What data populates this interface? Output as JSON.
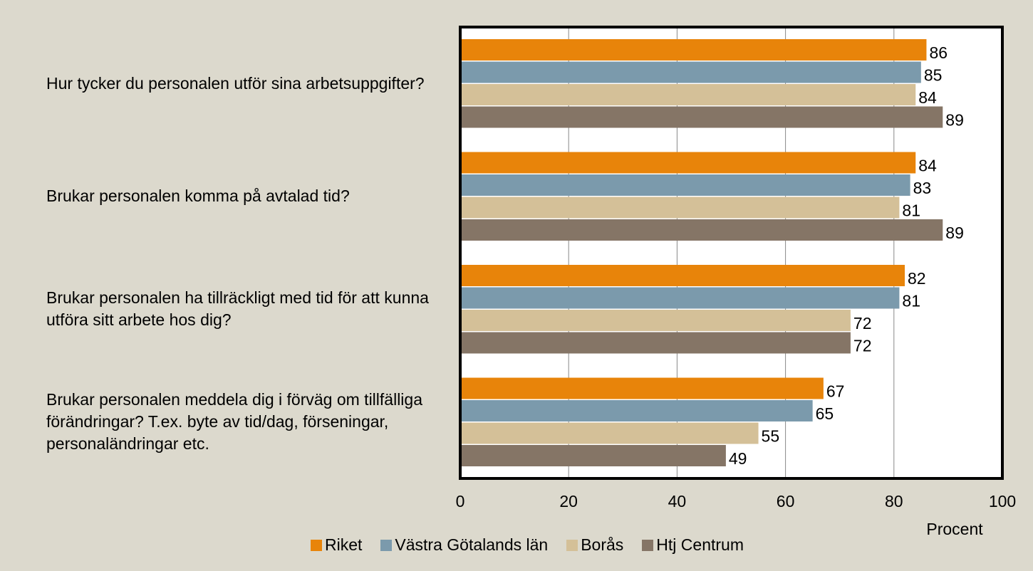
{
  "chart_data": {
    "type": "barh",
    "categories": [
      "Hur tycker du personalen utför sina arbetsuppgifter?",
      "Brukar personalen komma på avtalad tid?",
      "Brukar personalen ha tillräckligt med tid för att kunna utföra sitt arbete hos dig?",
      "Brukar personalen meddela dig i förväg om tillfälliga förändringar? T.ex. byte av tid/dag, förseningar, personaländringar etc."
    ],
    "series": [
      {
        "name": "Riket",
        "color": "#e8840a",
        "values": [
          86,
          84,
          82,
          67
        ]
      },
      {
        "name": "Västra Götalands län",
        "color": "#7b9aac",
        "values": [
          85,
          83,
          81,
          65
        ]
      },
      {
        "name": "Borås",
        "color": "#d4c098",
        "values": [
          84,
          81,
          72,
          55
        ]
      },
      {
        "name": "Htj Centrum",
        "color": "#857566",
        "values": [
          89,
          89,
          72,
          49
        ]
      }
    ],
    "xlim": [
      0,
      100
    ],
    "xticks": [
      0,
      20,
      40,
      60,
      80,
      100
    ],
    "x_label": "Procent",
    "grid": true,
    "legend": "bottom"
  }
}
